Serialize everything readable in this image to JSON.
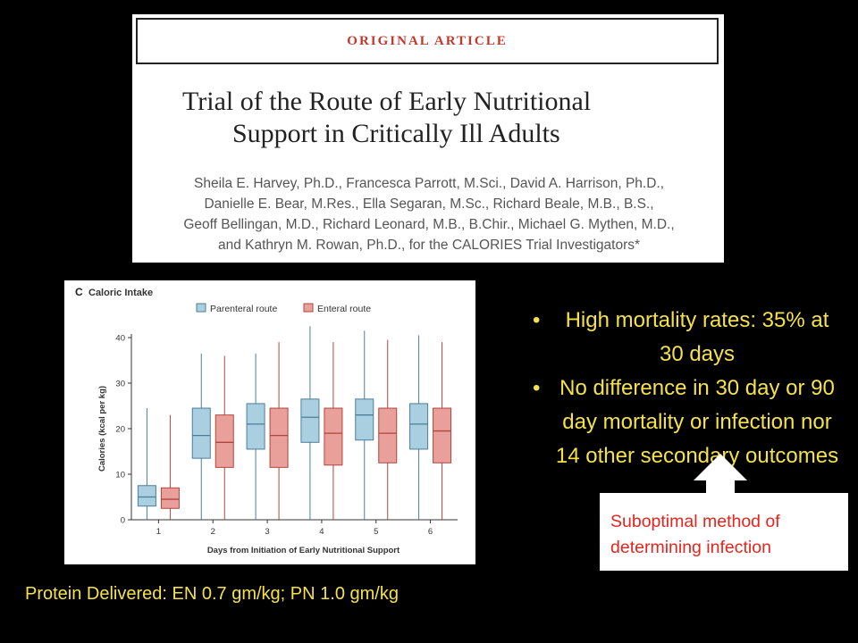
{
  "article": {
    "banner": "ORIGINAL ARTICLE",
    "title_lines": [
      "Trial of the Route of Early Nutritional",
      "Support in Critically Ill Adults"
    ],
    "author_lines": [
      "Sheila E. Harvey, Ph.D., Francesca Parrott, M.Sci., David A. Harrison, Ph.D.,",
      "Danielle E. Bear, M.Res., Ella Segaran, M.Sc., Richard Beale, M.B., B.S.,",
      "Geoff Bellingan, M.D., Richard Leonard, M.B., B.Chir., Michael G. Mythen, M.D.,",
      "and Kathryn M. Rowan, Ph.D., for the CALORIES Trial Investigators*"
    ]
  },
  "chart_data": {
    "type": "box",
    "panel_label": "C",
    "title": "Caloric Intake",
    "xlabel": "Days from Initiation of Early Nutritional Support",
    "ylabel": "Calories (kcal per kg)",
    "categories": [
      "1",
      "2",
      "3",
      "4",
      "5",
      "6"
    ],
    "ylim": [
      0,
      40
    ],
    "yticks": [
      "0",
      "10",
      "20",
      "30",
      "40"
    ],
    "legend_placement": "top",
    "series": [
      {
        "name": "Parenteral route",
        "color": "#a9cfe0",
        "edge": "#4a7f99",
        "boxes": [
          {
            "min": 0,
            "q1": 3,
            "median": 5,
            "q3": 7.5,
            "max": 24.5
          },
          {
            "min": 0,
            "q1": 13.5,
            "median": 18.5,
            "q3": 24.5,
            "max": 36.5
          },
          {
            "min": 0,
            "q1": 15.5,
            "median": 21,
            "q3": 25.5,
            "max": 36.5
          },
          {
            "min": 0,
            "q1": 17,
            "median": 22.5,
            "q3": 26.5,
            "max": 42.5
          },
          {
            "min": 0,
            "q1": 17.5,
            "median": 23,
            "q3": 26.5,
            "max": 41.5
          },
          {
            "min": 0,
            "q1": 15.5,
            "median": 21,
            "q3": 25.5,
            "max": 40.5
          }
        ]
      },
      {
        "name": "Enteral route",
        "color": "#e9a09a",
        "edge": "#b0453d",
        "boxes": [
          {
            "min": 0,
            "q1": 2.5,
            "median": 4.5,
            "q3": 7,
            "max": 23
          },
          {
            "min": 0,
            "q1": 11.5,
            "median": 17,
            "q3": 23,
            "max": 36
          },
          {
            "min": 0,
            "q1": 11.5,
            "median": 18.5,
            "q3": 24.5,
            "max": 39
          },
          {
            "min": 0,
            "q1": 12,
            "median": 19,
            "q3": 24.5,
            "max": 39
          },
          {
            "min": 0,
            "q1": 12.5,
            "median": 19,
            "q3": 24.5,
            "max": 39.5
          },
          {
            "min": 0,
            "q1": 12.5,
            "median": 19.5,
            "q3": 24.5,
            "max": 39
          }
        ]
      }
    ]
  },
  "bullets": [
    "High mortality rates: 35% at 30 days",
    "No difference in 30 day or 90 day mortality or infection nor 14 other secondary outcomes"
  ],
  "protein_text": "Protein Delivered: EN 0.7 gm/kg; PN 1.0 gm/kg",
  "callout": {
    "line1": "Suboptimal method of",
    "line2": "determining infection"
  },
  "colors": {
    "bullet_text": "#f5e24a",
    "callout_text": "#e8241c"
  }
}
